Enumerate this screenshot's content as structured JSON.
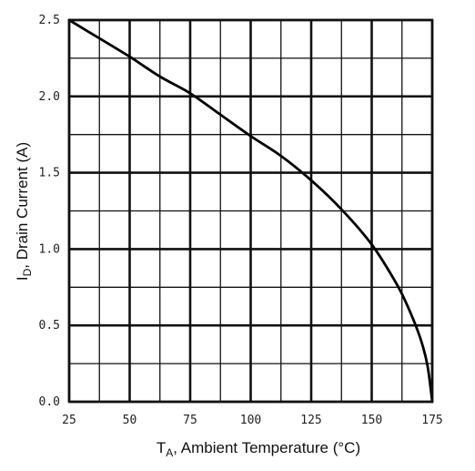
{
  "chart_data": {
    "type": "line",
    "title": "",
    "xlabel": {
      "main": "T",
      "sub": "A",
      "rest": ", Ambient Temperature (°C)"
    },
    "ylabel": {
      "main": "I",
      "sub": "D",
      "rest": ", Drain Current (A)"
    },
    "xlim": [
      25,
      175
    ],
    "ylim": [
      0,
      2.5
    ],
    "x_ticks": [
      25,
      50,
      75,
      100,
      125,
      150,
      175
    ],
    "x_tick_labels": [
      "25",
      "50",
      "75",
      "100",
      "125",
      "150",
      "175"
    ],
    "y_ticks": [
      0,
      0.5,
      1.0,
      1.5,
      2.0,
      2.5
    ],
    "y_tick_labels": [
      "0.0",
      "0.5",
      "1.0",
      "1.5",
      "2.0",
      "2.5"
    ],
    "grid": true,
    "series": [
      {
        "x": [
          25,
          37.5,
          50,
          62.5,
          75,
          87.5,
          100,
          112.5,
          125,
          137.5,
          150,
          160,
          165,
          170,
          173,
          175
        ],
        "y": [
          2.5,
          2.38,
          2.26,
          2.13,
          2.02,
          1.88,
          1.74,
          1.61,
          1.45,
          1.26,
          1.03,
          0.78,
          0.62,
          0.42,
          0.24,
          0.0
        ]
      }
    ]
  }
}
